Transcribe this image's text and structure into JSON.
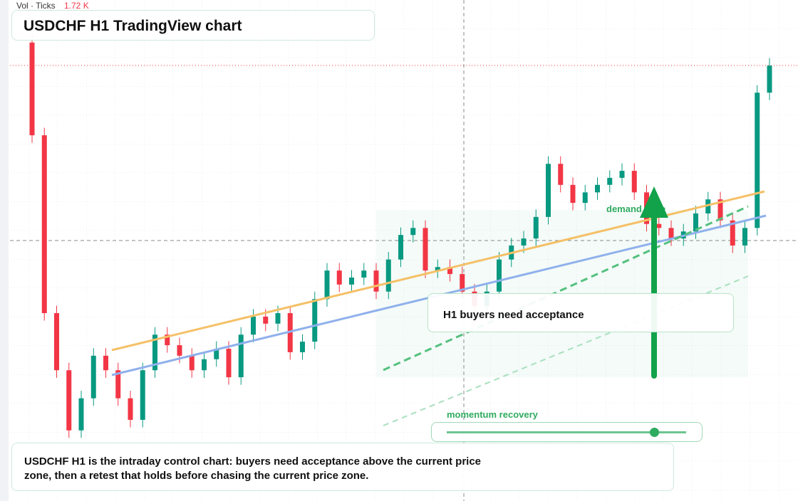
{
  "header": {
    "indicator": "Vol · Ticks",
    "indicator_value": "1.72 K"
  },
  "chart_data": {
    "type": "candlestick",
    "title": "USDCHF H1 TradingView chart",
    "up_color": "#089981",
    "down_color": "#f23645",
    "ylim": [
      0,
      100
    ],
    "open": [
      91.5,
      73.0,
      37.5,
      26.1,
      14.1,
      20.5,
      29.0,
      26.1,
      20.5,
      16.2,
      26.1,
      33.2,
      31.1,
      29.0,
      26.1,
      28.3,
      30.4,
      24.7,
      33.2,
      36.8,
      35.4,
      37.5,
      29.7,
      31.8,
      40.3,
      46.0,
      43.2,
      44.6,
      46.0,
      41.8,
      48.2,
      53.1,
      54.5,
      46.0,
      46.7,
      45.3,
      41.8,
      38.9,
      41.8,
      48.2,
      51.0,
      52.4,
      56.7,
      67.3,
      63.1,
      59.5,
      61.6,
      63.1,
      64.5,
      65.9,
      61.6,
      55.3,
      54.5,
      52.4,
      53.8,
      57.4,
      60.2,
      56.0,
      51.0,
      54.5,
      81.5
    ],
    "high": [
      93.0,
      74.5,
      39.0,
      27.6,
      22.0,
      30.5,
      30.5,
      27.6,
      22.0,
      27.6,
      34.7,
      34.7,
      32.6,
      30.5,
      29.8,
      31.9,
      31.9,
      34.7,
      38.3,
      38.3,
      39.0,
      39.0,
      33.3,
      41.8,
      47.5,
      47.5,
      46.1,
      47.5,
      47.5,
      49.7,
      54.6,
      56.0,
      56.0,
      48.2,
      48.2,
      46.8,
      43.3,
      43.3,
      49.7,
      52.5,
      53.9,
      58.2,
      68.8,
      68.8,
      64.6,
      63.1,
      64.6,
      66.0,
      67.4,
      67.4,
      63.1,
      56.8,
      56.0,
      55.3,
      58.9,
      61.7,
      61.7,
      57.5,
      56.0,
      83.0,
      88.4
    ],
    "low": [
      71.5,
      36.0,
      24.6,
      12.6,
      12.6,
      19.0,
      24.6,
      19.0,
      14.7,
      14.7,
      24.6,
      29.6,
      27.5,
      24.6,
      24.6,
      26.8,
      23.2,
      23.2,
      31.7,
      33.9,
      33.9,
      28.2,
      28.2,
      30.3,
      38.8,
      41.7,
      41.7,
      43.1,
      40.3,
      40.3,
      46.7,
      51.6,
      44.5,
      44.5,
      43.8,
      40.3,
      37.4,
      37.4,
      40.3,
      46.7,
      49.5,
      50.9,
      55.2,
      61.6,
      58.0,
      58.0,
      60.1,
      61.6,
      63.0,
      60.1,
      53.8,
      53.0,
      50.9,
      50.9,
      52.3,
      55.9,
      54.5,
      49.5,
      49.5,
      53.0,
      80.0
    ],
    "close": [
      73.0,
      37.5,
      26.1,
      14.1,
      20.5,
      29.0,
      26.1,
      20.5,
      16.2,
      26.1,
      33.2,
      31.1,
      29.0,
      26.1,
      28.3,
      30.4,
      24.7,
      33.2,
      36.8,
      35.4,
      37.5,
      29.7,
      31.8,
      40.3,
      46.0,
      43.2,
      44.6,
      46.0,
      41.8,
      48.2,
      53.1,
      54.5,
      46.0,
      46.7,
      45.3,
      41.8,
      38.9,
      41.8,
      48.2,
      51.0,
      52.4,
      56.7,
      67.3,
      63.1,
      59.5,
      61.6,
      63.1,
      64.5,
      65.9,
      61.6,
      55.3,
      54.5,
      52.4,
      53.8,
      57.4,
      60.2,
      56.0,
      51.0,
      54.5,
      81.5,
      86.9
    ],
    "annotations": {
      "zone": "demand zone",
      "callout": "H1 buyers need acceptance",
      "momentum": "momentum recovery",
      "caption": "USDCHF H1 is the intraday control chart: buyers need acceptance above the current price zone, then a retest that holds before chasing the current price zone."
    }
  }
}
